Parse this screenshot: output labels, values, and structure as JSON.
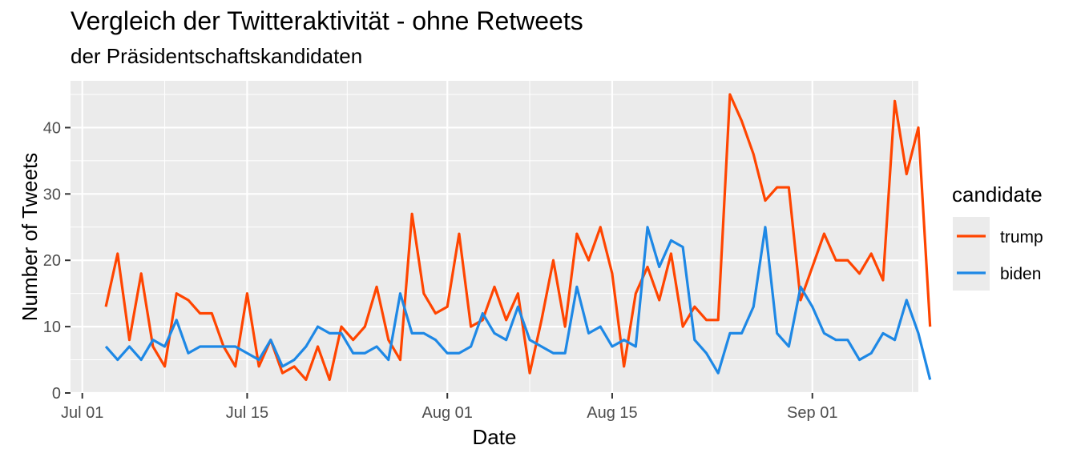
{
  "title": "Vergleich der Twitteraktivität - ohne Retweets",
  "subtitle": "der Präsidentschaftskandidaten",
  "chart_data": {
    "type": "line",
    "title": "Vergleich der Twitteraktivität - ohne Retweets",
    "subtitle": "der Präsidentschaftskandidaten",
    "xlabel": "Date",
    "ylabel": "Number of Tweets",
    "xlim": [
      "2020-06-30",
      "2020-09-10"
    ],
    "ylim": [
      0,
      45
    ],
    "x_ticks": [
      {
        "date": "2020-07-01",
        "label": "Jul 01"
      },
      {
        "date": "2020-07-15",
        "label": "Jul 15"
      },
      {
        "date": "2020-08-01",
        "label": "Aug 01"
      },
      {
        "date": "2020-08-15",
        "label": "Aug 15"
      },
      {
        "date": "2020-09-01",
        "label": "Sep 01"
      }
    ],
    "y_ticks": [
      0,
      10,
      20,
      30,
      40
    ],
    "grid": true,
    "legend": {
      "title": "candidate",
      "position": "right"
    },
    "x_start": "2020-07-03",
    "series": [
      {
        "name": "trump",
        "color": "#ff4500",
        "values": [
          13,
          21,
          8,
          18,
          7,
          4,
          15,
          14,
          12,
          12,
          7,
          4,
          15,
          4,
          8,
          3,
          4,
          2,
          7,
          2,
          10,
          8,
          10,
          16,
          8,
          5,
          27,
          15,
          12,
          13,
          24,
          10,
          11,
          16,
          11,
          15,
          3,
          11,
          20,
          10,
          24,
          20,
          25,
          18,
          4,
          15,
          19,
          14,
          21,
          10,
          13,
          11,
          11,
          45,
          41,
          36,
          29,
          31,
          31,
          14,
          19,
          24,
          20,
          20,
          18,
          21,
          17,
          44,
          33,
          40,
          10
        ]
      },
      {
        "name": "biden",
        "color": "#1e88e5",
        "values": [
          7,
          5,
          7,
          5,
          8,
          7,
          11,
          6,
          7,
          7,
          7,
          7,
          6,
          5,
          8,
          4,
          5,
          7,
          10,
          9,
          9,
          6,
          6,
          7,
          5,
          15,
          9,
          9,
          8,
          6,
          6,
          7,
          12,
          9,
          8,
          13,
          8,
          7,
          6,
          6,
          16,
          9,
          10,
          7,
          8,
          7,
          25,
          19,
          23,
          22,
          8,
          6,
          3,
          9,
          9,
          13,
          25,
          9,
          7,
          16,
          13,
          9,
          8,
          8,
          5,
          6,
          9,
          8,
          14,
          9,
          2
        ]
      }
    ]
  }
}
